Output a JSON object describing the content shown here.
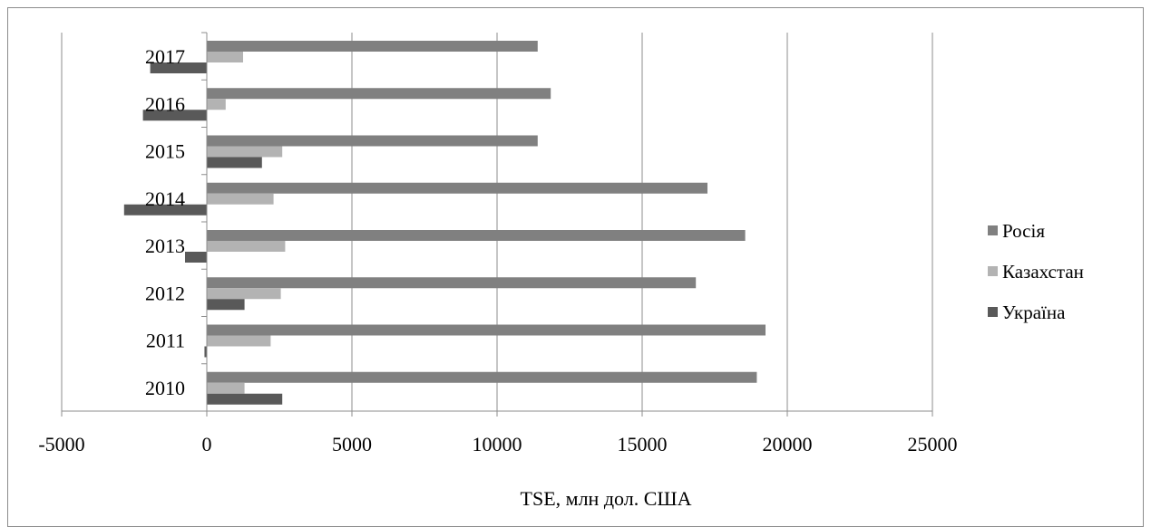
{
  "chart_data": {
    "type": "bar",
    "orientation": "horizontal",
    "categories": [
      "2010",
      "2011",
      "2012",
      "2013",
      "2014",
      "2015",
      "2016",
      "2017"
    ],
    "series": [
      {
        "name": "Росія",
        "color": "#808080",
        "values": [
          18950,
          19250,
          16850,
          18550,
          17250,
          11400,
          11850,
          11400
        ]
      },
      {
        "name": "Казахстан",
        "color": "#b3b3b3",
        "values": [
          1300,
          2200,
          2550,
          2700,
          2300,
          2600,
          650,
          1250
        ]
      },
      {
        "name": "Україна",
        "color": "#595959",
        "values": [
          2600,
          -80,
          1300,
          -750,
          -2850,
          1900,
          -2200,
          -1950
        ]
      }
    ],
    "xlim": [
      -5000,
      25000
    ],
    "x_ticks": [
      -5000,
      0,
      5000,
      10000,
      15000,
      20000,
      25000
    ],
    "x_tick_labels": [
      "-5000",
      "0",
      "5000",
      "10000",
      "15000",
      "20000",
      "25000"
    ],
    "xlabel": "TSE, млн дол. США",
    "ylabel": "",
    "title": "",
    "grid": "vertical-major",
    "legend": "right"
  }
}
